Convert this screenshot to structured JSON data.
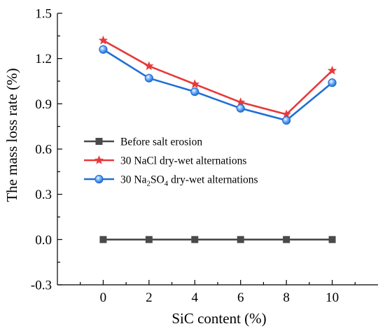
{
  "chart_data": {
    "type": "line",
    "x": [
      0,
      2,
      4,
      6,
      8,
      10
    ],
    "xlabel": "SiC content (%)",
    "ylabel": "The mass loss rate (%)",
    "xlim": [
      -2,
      12
    ],
    "ylim": [
      -0.3,
      1.5
    ],
    "xticks": [
      "0",
      "2",
      "4",
      "6",
      "8",
      "10"
    ],
    "yticks": [
      "-0.3",
      "0.0",
      "0.3",
      "0.6",
      "0.9",
      "1.2",
      "1.5"
    ],
    "grid": false,
    "legend_position": "center-left",
    "series": [
      {
        "name": "Before salt erosion",
        "values": [
          0,
          0,
          0,
          0,
          0,
          0
        ],
        "color": "#4a4a4a",
        "marker": "square"
      },
      {
        "name": "30 NaCl dry-wet alternations",
        "values": [
          1.32,
          1.15,
          1.03,
          0.91,
          0.83,
          1.12
        ],
        "color": "#e8393a",
        "marker": "star"
      },
      {
        "name": "30 Na2SO4 dry-wet alternations",
        "values": [
          1.26,
          1.07,
          0.98,
          0.87,
          0.79,
          1.04
        ],
        "color": "#1f6fd6",
        "marker": "circle"
      }
    ]
  }
}
